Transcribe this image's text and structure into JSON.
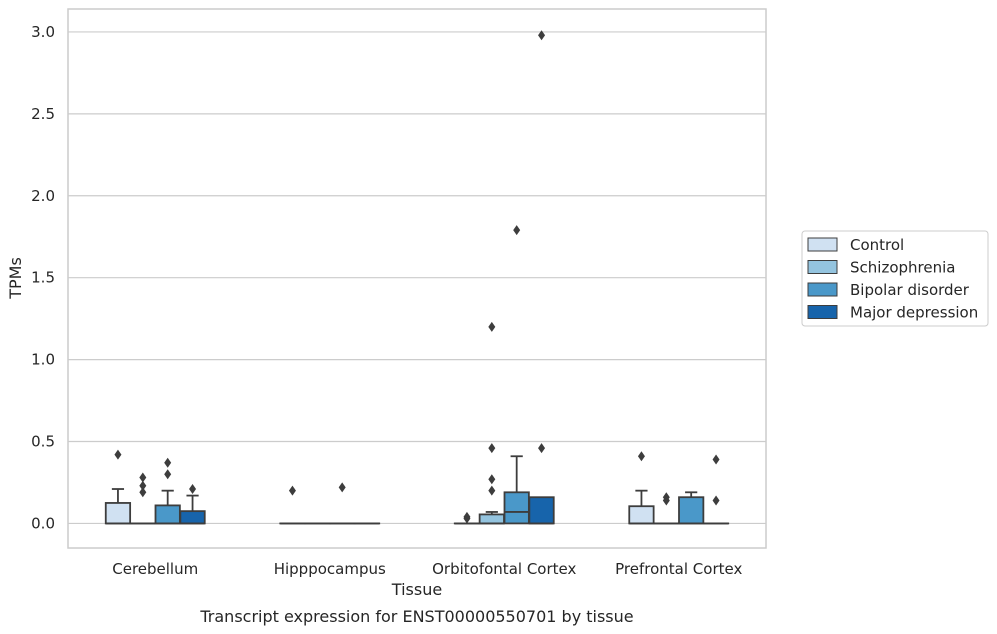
{
  "chart_data": {
    "type": "box",
    "xlabel": "Tissue",
    "ylabel": "TPMs",
    "caption": "Transcript expression for ENST00000550701 by tissue",
    "ylim": [
      -0.15,
      3.14
    ],
    "yticks": [
      "0.0",
      "0.5",
      "1.0",
      "1.5",
      "2.0",
      "2.5",
      "3.0"
    ],
    "ytick_values": [
      0.0,
      0.5,
      1.0,
      1.5,
      2.0,
      2.5,
      3.0
    ],
    "grid": true,
    "legend_position": "right",
    "categories": [
      "Cerebellum",
      "Hipppocampus",
      "Orbitofontal Cortex",
      "Prefrontal Cortex"
    ],
    "series": [
      {
        "name": "Control",
        "color": "#d0e1f2",
        "boxes": [
          {
            "q1": 0.0,
            "median": 0.0,
            "q3": 0.125,
            "whisker_low": 0.0,
            "whisker_high": 0.21,
            "outliers": [
              0.42
            ]
          },
          {
            "q1": 0.0,
            "median": 0.0,
            "q3": 0.0,
            "whisker_low": 0.0,
            "whisker_high": 0.0,
            "outliers": [
              0.2
            ]
          },
          {
            "q1": 0.0,
            "median": 0.0,
            "q3": 0.0,
            "whisker_low": 0.0,
            "whisker_high": 0.0,
            "outliers": [
              0.04,
              0.03
            ]
          },
          {
            "q1": 0.0,
            "median": 0.0,
            "q3": 0.105,
            "whisker_low": 0.0,
            "whisker_high": 0.2,
            "outliers": [
              0.41
            ]
          }
        ]
      },
      {
        "name": "Schizophrenia",
        "color": "#94c4df",
        "boxes": [
          {
            "q1": 0.0,
            "median": 0.0,
            "q3": 0.0,
            "whisker_low": 0.0,
            "whisker_high": 0.0,
            "outliers": [
              0.28,
              0.23,
              0.19
            ]
          },
          {
            "q1": 0.0,
            "median": 0.0,
            "q3": 0.0,
            "whisker_low": 0.0,
            "whisker_high": 0.0,
            "outliers": []
          },
          {
            "q1": 0.0,
            "median": 0.0,
            "q3": 0.055,
            "whisker_low": 0.0,
            "whisker_high": 0.07,
            "outliers": [
              0.46,
              0.27,
              0.2,
              1.2
            ]
          },
          {
            "q1": 0.0,
            "median": 0.0,
            "q3": 0.0,
            "whisker_low": 0.0,
            "whisker_high": 0.0,
            "outliers": [
              0.16,
              0.14
            ]
          }
        ]
      },
      {
        "name": "Bipolar disorder",
        "color": "#4a98c9",
        "boxes": [
          {
            "q1": 0.0,
            "median": 0.0,
            "q3": 0.11,
            "whisker_low": 0.0,
            "whisker_high": 0.2,
            "outliers": [
              0.37,
              0.3
            ]
          },
          {
            "q1": 0.0,
            "median": 0.0,
            "q3": 0.0,
            "whisker_low": 0.0,
            "whisker_high": 0.0,
            "outliers": [
              0.22
            ]
          },
          {
            "q1": 0.0,
            "median": 0.07,
            "q3": 0.19,
            "whisker_low": 0.0,
            "whisker_high": 0.41,
            "outliers": [
              1.79
            ]
          },
          {
            "q1": 0.0,
            "median": 0.0,
            "q3": 0.16,
            "whisker_low": 0.0,
            "whisker_high": 0.19,
            "outliers": []
          }
        ]
      },
      {
        "name": "Major depression",
        "color": "#1764ab",
        "boxes": [
          {
            "q1": 0.0,
            "median": 0.0,
            "q3": 0.075,
            "whisker_low": 0.0,
            "whisker_high": 0.17,
            "outliers": [
              0.21
            ]
          },
          {
            "q1": 0.0,
            "median": 0.0,
            "q3": 0.0,
            "whisker_low": 0.0,
            "whisker_high": 0.0,
            "outliers": []
          },
          {
            "q1": 0.0,
            "median": 0.0,
            "q3": 0.16,
            "whisker_low": 0.0,
            "whisker_high": 0.16,
            "outliers": [
              0.46,
              2.98
            ]
          },
          {
            "q1": 0.0,
            "median": 0.0,
            "q3": 0.0,
            "whisker_low": 0.0,
            "whisker_high": 0.0,
            "outliers": [
              0.39,
              0.14
            ]
          }
        ]
      }
    ]
  },
  "colors": {
    "grid": "#cccccc",
    "axis_frame": "#cccccc",
    "box_edge": "#3d3d3d",
    "text": "#262626"
  }
}
